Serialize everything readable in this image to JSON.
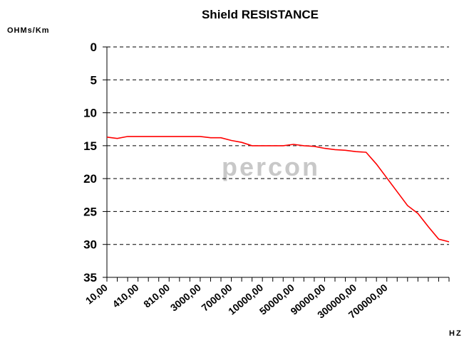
{
  "chart_data": {
    "type": "line",
    "title": "Shield RESISTANCE",
    "y_label": "OHMs/Km",
    "x_label": "HZ",
    "watermark": "percon",
    "categories": [
      "10,00",
      null,
      null,
      "410,00",
      null,
      null,
      "810,00",
      null,
      null,
      "3000,00",
      null,
      null,
      "7000,00",
      null,
      null,
      "10000,00",
      null,
      null,
      "50000,00",
      null,
      null,
      "90000,00",
      null,
      null,
      "300000,00",
      null,
      null,
      "700000,00",
      null,
      null,
      null,
      null,
      null,
      null
    ],
    "series": [
      {
        "name": "Shield RESISTANCE",
        "color": "#ff0000",
        "values": [
          13.7,
          13.9,
          13.6,
          13.6,
          13.6,
          13.6,
          13.6,
          13.6,
          13.6,
          13.6,
          13.8,
          13.8,
          14.2,
          14.5,
          15,
          15,
          15,
          15,
          14.8,
          15,
          15.1,
          15.4,
          15.6,
          15.7,
          15.9,
          16,
          17.8,
          19.9,
          22,
          24.1,
          25.3,
          27.3,
          29.2,
          29.6
        ]
      }
    ],
    "ylim": [
      0,
      35
    ],
    "yticks": [
      0,
      5,
      10,
      15,
      20,
      25,
      30,
      35
    ],
    "y_inverted": true,
    "grid": true
  }
}
